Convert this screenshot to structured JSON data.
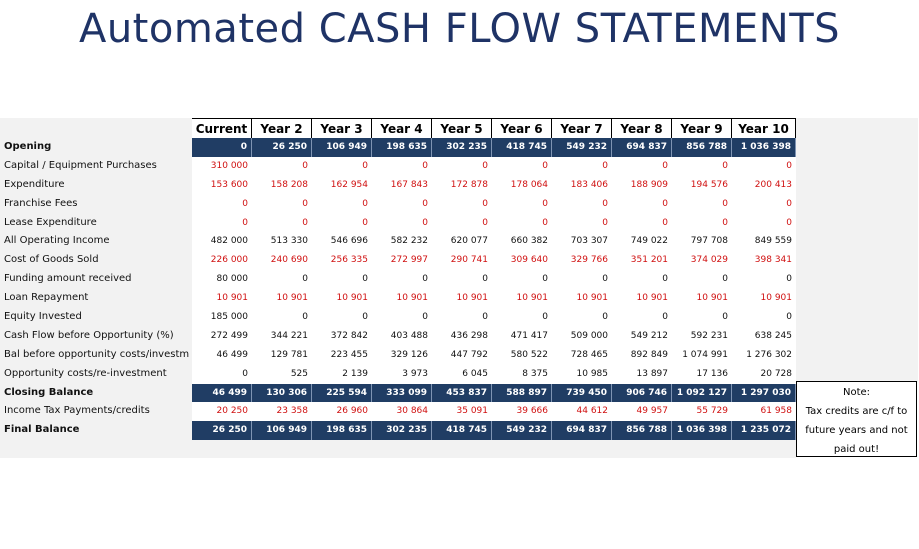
{
  "title": "Automated CASH FLOW STATEMENTS",
  "columns": [
    "Current",
    "Year 2",
    "Year 3",
    "Year 4",
    "Year 5",
    "Year 6",
    "Year 7",
    "Year 8",
    "Year 9",
    "Year 10"
  ],
  "rows": [
    {
      "label": "Opening",
      "style": "dark",
      "values": [
        "0",
        "26 250",
        "106 949",
        "198 635",
        "302 235",
        "418 745",
        "549 232",
        "694 837",
        "856 788",
        "1 036 398"
      ]
    },
    {
      "label": "Capital / Equipment Purchases",
      "style": "neg",
      "values": [
        "310 000",
        "0",
        "0",
        "0",
        "0",
        "0",
        "0",
        "0",
        "0",
        "0"
      ]
    },
    {
      "label": "Expenditure",
      "style": "neg",
      "values": [
        "153 600",
        "158 208",
        "162 954",
        "167 843",
        "172 878",
        "178 064",
        "183 406",
        "188 909",
        "194 576",
        "200 413"
      ]
    },
    {
      "label": "Franchise Fees",
      "style": "neg",
      "values": [
        "0",
        "0",
        "0",
        "0",
        "0",
        "0",
        "0",
        "0",
        "0",
        "0"
      ]
    },
    {
      "label": "Lease Expenditure",
      "style": "neg",
      "values": [
        "0",
        "0",
        "0",
        "0",
        "0",
        "0",
        "0",
        "0",
        "0",
        "0"
      ]
    },
    {
      "label": "All Operating Income",
      "style": "normal",
      "values": [
        "482 000",
        "513 330",
        "546 696",
        "582 232",
        "620 077",
        "660 382",
        "703 307",
        "749 022",
        "797 708",
        "849 559"
      ]
    },
    {
      "label": "Cost of Goods Sold",
      "style": "neg",
      "values": [
        "226 000",
        "240 690",
        "256 335",
        "272 997",
        "290 741",
        "309 640",
        "329 766",
        "351 201",
        "374 029",
        "398 341"
      ]
    },
    {
      "label": "Funding amount received",
      "style": "normal",
      "values": [
        "80 000",
        "0",
        "0",
        "0",
        "0",
        "0",
        "0",
        "0",
        "0",
        "0"
      ]
    },
    {
      "label": "Loan Repayment",
      "style": "neg",
      "values": [
        "10 901",
        "10 901",
        "10 901",
        "10 901",
        "10 901",
        "10 901",
        "10 901",
        "10 901",
        "10 901",
        "10 901"
      ]
    },
    {
      "label": "Equity Invested",
      "style": "normal",
      "values": [
        "185 000",
        "0",
        "0",
        "0",
        "0",
        "0",
        "0",
        "0",
        "0",
        "0"
      ]
    },
    {
      "label": "Cash Flow before Opportunity (%)",
      "style": "normal",
      "values": [
        "272 499",
        "344 221",
        "372 842",
        "403 488",
        "436 298",
        "471 417",
        "509 000",
        "549 212",
        "592 231",
        "638 245"
      ]
    },
    {
      "label": "Bal before opportunity costs/investm",
      "style": "normal",
      "values": [
        "46 499",
        "129 781",
        "223 455",
        "329 126",
        "447 792",
        "580 522",
        "728 465",
        "892 849",
        "1 074 991",
        "1 276 302"
      ]
    },
    {
      "label": "Opportunity costs/re-investment",
      "style": "normal",
      "values": [
        "0",
        "525",
        "2 139",
        "3 973",
        "6 045",
        "8 375",
        "10 985",
        "13 897",
        "17 136",
        "20 728"
      ]
    },
    {
      "label": "Closing Balance",
      "style": "dark",
      "values": [
        "46 499",
        "130 306",
        "225 594",
        "333 099",
        "453 837",
        "588 897",
        "739 450",
        "906 746",
        "1 092 127",
        "1 297 030"
      ]
    },
    {
      "label": "Income Tax Payments/credits",
      "style": "neg",
      "values": [
        "20 250",
        "23 358",
        "26 960",
        "30 864",
        "35 091",
        "39 666",
        "44 612",
        "49 957",
        "55 729",
        "61 958"
      ]
    },
    {
      "label": "Final Balance",
      "style": "dark",
      "values": [
        "26 250",
        "106 949",
        "198 635",
        "302 235",
        "418 745",
        "549 232",
        "694 837",
        "856 788",
        "1 036 398",
        "1 235 072"
      ]
    }
  ],
  "note": {
    "line1": "Note:",
    "line2": "Tax credits are c/f to",
    "line3": "future years and not",
    "line4": "paid out!"
  }
}
